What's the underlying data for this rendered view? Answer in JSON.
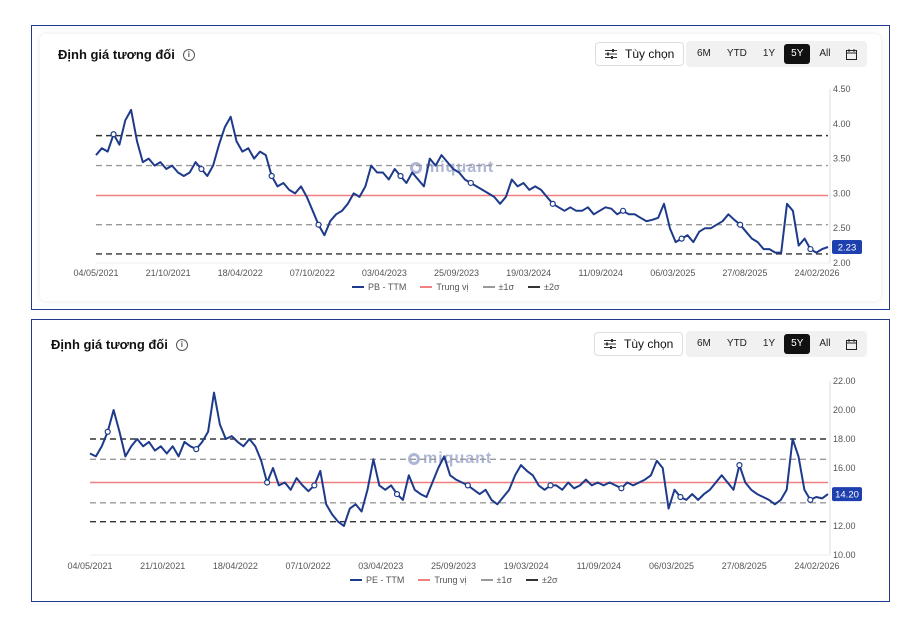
{
  "panels": [
    {
      "title": "Định giá tương đối",
      "options_label": "Tùy chọn",
      "ranges": [
        "6M",
        "YTD",
        "1Y",
        "5Y",
        "All"
      ],
      "active_range": "5Y",
      "watermark": "miquant",
      "current_value_label": "2.23",
      "legend": [
        {
          "label": "PB - TTM",
          "color": "#1e3a8a",
          "style": "solid"
        },
        {
          "label": "Trung vị",
          "color": "#f08080",
          "style": "solid"
        },
        {
          "label": "±1σ",
          "color": "#999999",
          "style": "dashed"
        },
        {
          "label": "±2σ",
          "color": "#333333",
          "style": "dashed"
        }
      ],
      "chart_data": {
        "type": "line",
        "x_tick_labels": [
          "04/05/2021",
          "21/10/2021",
          "18/04/2022",
          "07/10/2022",
          "03/04/2023",
          "25/09/2023",
          "19/03/2024",
          "11/09/2024",
          "06/03/2025",
          "27/08/2025",
          "24/02/2026"
        ],
        "y_ticks": [
          "4.50",
          "4.00",
          "3.50",
          "3.00",
          "2.50",
          "2.00"
        ],
        "ylim": [
          2.0,
          4.5
        ],
        "median": 2.97,
        "plus_1sigma": 3.4,
        "minus_1sigma": 2.55,
        "plus_2sigma": 3.83,
        "minus_2sigma": 2.13,
        "series": [
          {
            "name": "PB - TTM",
            "values": [
              3.55,
              3.65,
              3.6,
              3.85,
              3.7,
              4.05,
              4.2,
              3.75,
              3.45,
              3.5,
              3.4,
              3.45,
              3.35,
              3.4,
              3.3,
              3.25,
              3.3,
              3.45,
              3.35,
              3.25,
              3.4,
              3.7,
              3.95,
              4.1,
              3.75,
              3.6,
              3.65,
              3.5,
              3.6,
              3.55,
              3.25,
              3.1,
              3.15,
              3.05,
              3.0,
              3.1,
              2.95,
              2.75,
              2.55,
              2.4,
              2.6,
              2.7,
              2.75,
              2.85,
              3.0,
              2.95,
              3.1,
              3.4,
              3.3,
              3.3,
              3.2,
              3.35,
              3.25,
              3.15,
              3.3,
              3.2,
              3.1,
              3.5,
              3.4,
              3.55,
              3.45,
              3.35,
              3.3,
              3.2,
              3.15,
              3.1,
              3.05,
              3.0,
              2.95,
              2.85,
              2.95,
              3.2,
              3.1,
              3.15,
              3.05,
              3.1,
              3.05,
              2.95,
              2.85,
              2.8,
              2.75,
              2.8,
              2.75,
              2.75,
              2.8,
              2.7,
              2.75,
              2.8,
              2.78,
              2.7,
              2.75,
              2.7,
              2.7,
              2.65,
              2.6,
              2.62,
              2.65,
              2.85,
              2.5,
              2.3,
              2.35,
              2.4,
              2.3,
              2.45,
              2.5,
              2.5,
              2.55,
              2.6,
              2.7,
              2.62,
              2.55,
              2.45,
              2.35,
              2.3,
              2.2,
              2.2,
              2.15,
              2.15,
              2.85,
              2.75,
              2.25,
              2.35,
              2.2,
              2.15,
              2.2,
              2.23
            ]
          }
        ]
      }
    },
    {
      "title": "Định giá tương đối",
      "options_label": "Tùy chọn",
      "ranges": [
        "6M",
        "YTD",
        "1Y",
        "5Y",
        "All"
      ],
      "active_range": "5Y",
      "watermark": "miquant",
      "current_value_label": "14.20",
      "legend": [
        {
          "label": "PE - TTM",
          "color": "#1e3a8a",
          "style": "solid"
        },
        {
          "label": "Trung vị",
          "color": "#f08080",
          "style": "solid"
        },
        {
          "label": "±1σ",
          "color": "#999999",
          "style": "dashed"
        },
        {
          "label": "±2σ",
          "color": "#333333",
          "style": "dashed"
        }
      ],
      "chart_data": {
        "type": "line",
        "x_tick_labels": [
          "04/05/2021",
          "21/10/2021",
          "18/04/2022",
          "07/10/2022",
          "03/04/2023",
          "25/09/2023",
          "19/03/2024",
          "11/09/2024",
          "06/03/2025",
          "27/08/2025",
          "24/02/2026"
        ],
        "y_ticks": [
          "22.00",
          "20.00",
          "18.00",
          "16.00",
          "14.00",
          "12.00",
          "10.00"
        ],
        "ylim": [
          10.0,
          22.0
        ],
        "median": 15.0,
        "plus_1sigma": 16.6,
        "minus_1sigma": 13.6,
        "plus_2sigma": 18.0,
        "minus_2sigma": 12.3,
        "series": [
          {
            "name": "PE - TTM",
            "values": [
              17.0,
              16.8,
              17.5,
              18.5,
              20.0,
              18.5,
              16.8,
              17.5,
              18.0,
              17.5,
              17.8,
              17.2,
              17.5,
              17.0,
              17.5,
              16.8,
              17.8,
              17.5,
              17.3,
              17.8,
              18.5,
              21.2,
              19.0,
              18.0,
              18.2,
              17.8,
              17.5,
              18.0,
              17.5,
              16.5,
              15.0,
              16.0,
              14.8,
              15.0,
              14.5,
              15.3,
              14.8,
              14.4,
              14.8,
              15.8,
              13.5,
              12.8,
              12.3,
              12.0,
              13.2,
              13.5,
              13.0,
              14.5,
              16.6,
              14.8,
              14.5,
              14.8,
              14.2,
              13.8,
              15.5,
              14.5,
              14.2,
              14.0,
              15.0,
              16.0,
              16.8,
              15.5,
              15.2,
              15.0,
              14.8,
              14.5,
              14.2,
              14.5,
              13.8,
              13.5,
              14.0,
              14.5,
              15.5,
              16.2,
              15.8,
              15.5,
              14.8,
              14.5,
              14.8,
              14.8,
              14.5,
              15.0,
              14.6,
              14.8,
              15.2,
              14.8,
              15.0,
              14.8,
              15.0,
              14.8,
              14.6,
              15.0,
              14.8,
              15.0,
              15.2,
              15.5,
              16.5,
              16.0,
              13.2,
              14.5,
              14.0,
              13.8,
              14.2,
              13.8,
              14.2,
              14.5,
              15.0,
              15.5,
              15.0,
              14.5,
              16.2,
              15.0,
              14.5,
              14.2,
              14.0,
              13.8,
              13.5,
              13.8,
              14.5,
              18.0,
              16.8,
              14.5,
              13.8,
              14.0,
              13.9,
              14.2
            ]
          }
        ]
      }
    }
  ]
}
